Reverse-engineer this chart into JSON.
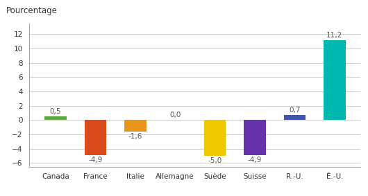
{
  "categories": [
    "Canada",
    "France",
    "Italie",
    "Allemagne",
    "Suède",
    "Suisse",
    "R.-U.",
    "É.-U."
  ],
  "values": [
    0.5,
    -4.9,
    -1.6,
    0.0,
    -5.0,
    -4.9,
    0.7,
    11.2
  ],
  "bar_colors": [
    "#5ca83c",
    "#d94b1a",
    "#e8951a",
    "#cccc00",
    "#f0c800",
    "#6633aa",
    "#4455aa",
    "#00b8b0"
  ],
  "ylabel": "Pourcentage",
  "ylim": [
    -6.5,
    13.5
  ],
  "yticks": [
    -6,
    -4,
    -2,
    0,
    2,
    4,
    6,
    8,
    10,
    12
  ],
  "label_fontsize": 7.5,
  "ylabel_fontsize": 8.5,
  "value_label_fontsize": 7.5,
  "background_color": "#ffffff",
  "grid_color": "#cccccc"
}
